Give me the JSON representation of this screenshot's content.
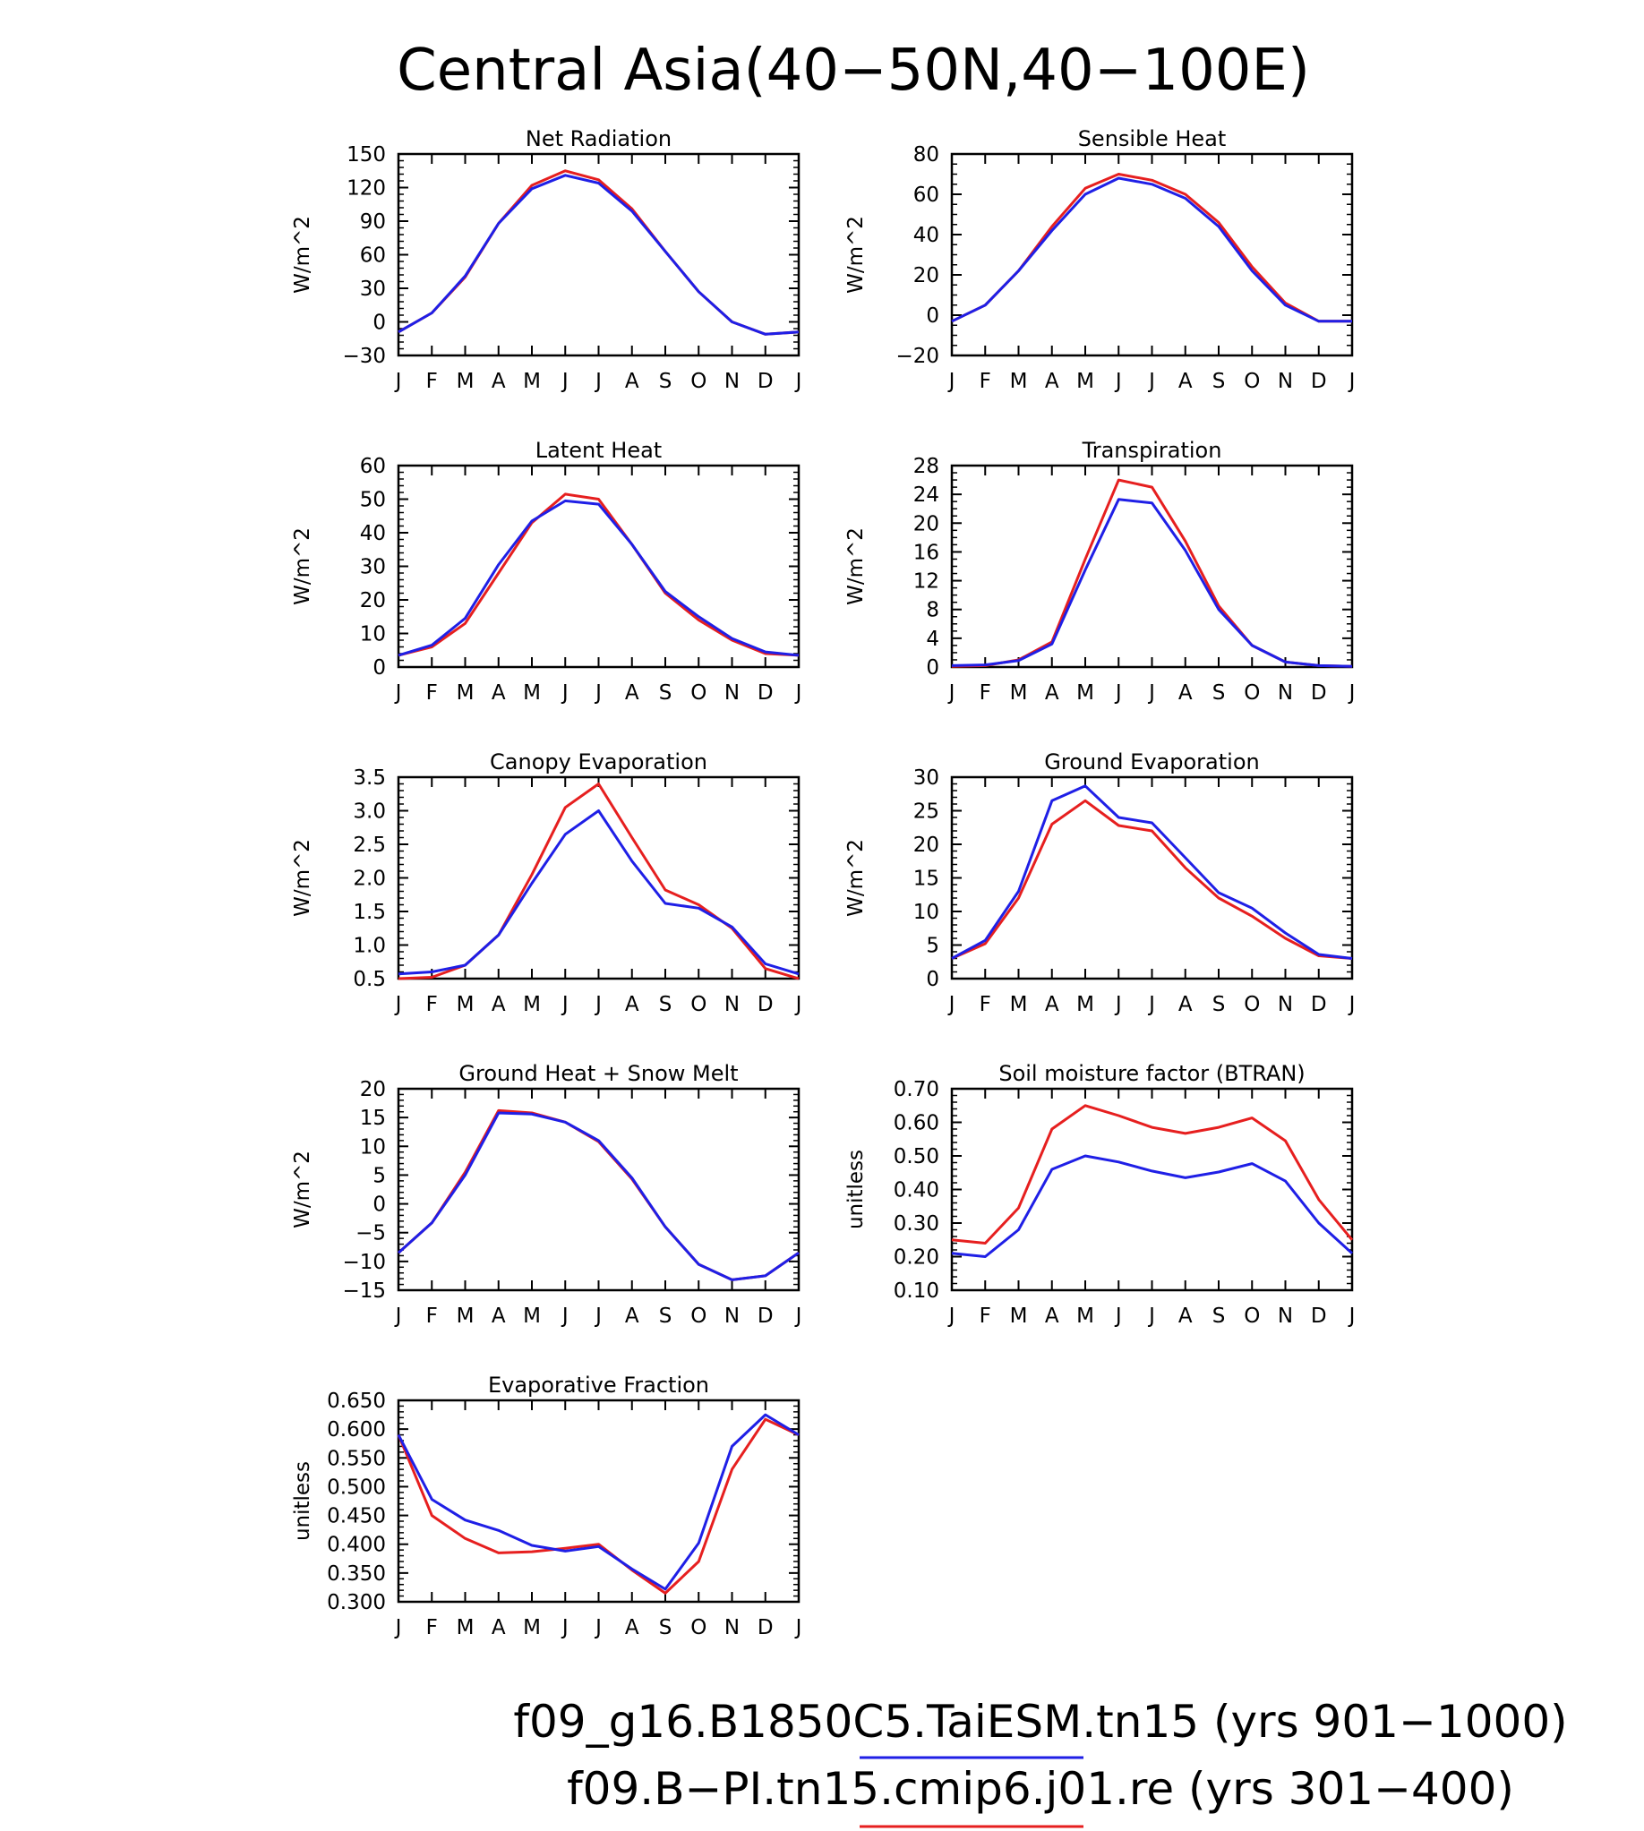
{
  "title": "Central Asia(40−50N,40−100E)",
  "colors": {
    "case1": "#1f1fe6",
    "case2": "#e61f1f",
    "axis": "#000000"
  },
  "legend": [
    {
      "label": "f09_g16.B1850C5.TaiESM.tn15 (yrs 901−1000)",
      "color": "#1f1fe6"
    },
    {
      "label": "f09.B−PI.tn15.cmip6.j01.re (yrs 301−400)",
      "color": "#e61f1f"
    }
  ],
  "months": [
    "J",
    "F",
    "M",
    "A",
    "M",
    "J",
    "J",
    "A",
    "S",
    "O",
    "N",
    "D",
    "J"
  ],
  "chart_data": [
    {
      "type": "line",
      "title": "Net Radiation",
      "ylabel": "W/m^2",
      "ylim": [
        -30,
        150
      ],
      "yticks": [
        -30,
        0,
        30,
        60,
        90,
        120,
        150
      ],
      "yticklabels": [
        "−30",
        "0",
        "30",
        "60",
        "90",
        "120",
        "150"
      ],
      "minor": 5,
      "x": [
        "J",
        "F",
        "M",
        "A",
        "M",
        "J",
        "J",
        "A",
        "S",
        "O",
        "N",
        "D",
        "J"
      ],
      "series": [
        {
          "color": "#e61f1f",
          "values": [
            -9,
            8,
            40,
            88,
            122,
            135,
            127,
            101,
            63,
            27,
            0,
            -11,
            -9
          ]
        },
        {
          "color": "#1f1fe6",
          "values": [
            -9,
            8,
            41,
            88,
            119,
            131,
            124,
            99,
            63,
            27,
            0,
            -11,
            -9
          ]
        }
      ]
    },
    {
      "type": "line",
      "title": "Sensible Heat",
      "ylabel": "W/m^2",
      "ylim": [
        -20,
        80
      ],
      "yticks": [
        -20,
        0,
        20,
        40,
        60,
        80
      ],
      "yticklabels": [
        "−20",
        "0",
        "20",
        "40",
        "60",
        "80"
      ],
      "minor": 4,
      "x": [
        "J",
        "F",
        "M",
        "A",
        "M",
        "J",
        "J",
        "A",
        "S",
        "O",
        "N",
        "D",
        "J"
      ],
      "series": [
        {
          "color": "#e61f1f",
          "values": [
            -3,
            5,
            22,
            44,
            63,
            70,
            67,
            60,
            46,
            24,
            6,
            -3,
            -3
          ]
        },
        {
          "color": "#1f1fe6",
          "values": [
            -3,
            5,
            22,
            42,
            60,
            68,
            65,
            58,
            44,
            22,
            5,
            -3,
            -3
          ]
        }
      ]
    },
    {
      "type": "line",
      "title": "Latent Heat",
      "ylabel": "W/m^2",
      "ylim": [
        0,
        60
      ],
      "yticks": [
        0,
        10,
        20,
        30,
        40,
        50,
        60
      ],
      "yticklabels": [
        "0",
        "10",
        "20",
        "30",
        "40",
        "50",
        "60"
      ],
      "minor": 5,
      "x": [
        "J",
        "F",
        "M",
        "A",
        "M",
        "J",
        "J",
        "A",
        "S",
        "O",
        "N",
        "D",
        "J"
      ],
      "series": [
        {
          "color": "#e61f1f",
          "values": [
            3.5,
            6,
            13,
            28,
            43,
            51.5,
            50,
            36.5,
            22,
            14,
            8,
            4,
            3.5
          ]
        },
        {
          "color": "#1f1fe6",
          "values": [
            3.5,
            6.5,
            14.5,
            30.5,
            43.5,
            49.5,
            48.5,
            36.5,
            22.5,
            15,
            8.5,
            4.5,
            3.5
          ]
        }
      ]
    },
    {
      "type": "line",
      "title": "Transpiration",
      "ylabel": "W/m^2",
      "ylim": [
        0,
        28
      ],
      "yticks": [
        0,
        4,
        8,
        12,
        16,
        20,
        24,
        28
      ],
      "yticklabels": [
        "0",
        "4",
        "8",
        "12",
        "16",
        "20",
        "24",
        "28"
      ],
      "minor": 4,
      "x": [
        "J",
        "F",
        "M",
        "A",
        "M",
        "J",
        "J",
        "A",
        "S",
        "O",
        "N",
        "D",
        "J"
      ],
      "series": [
        {
          "color": "#e61f1f",
          "values": [
            0.1,
            0.2,
            1,
            3.5,
            15,
            26,
            25,
            17.5,
            8.5,
            3,
            0.7,
            0.2,
            0.1
          ]
        },
        {
          "color": "#1f1fe6",
          "values": [
            0.2,
            0.3,
            0.9,
            3.2,
            13.5,
            23.3,
            22.8,
            16.2,
            8,
            3,
            0.7,
            0.2,
            0.1
          ]
        }
      ]
    },
    {
      "type": "line",
      "title": "Canopy Evaporation",
      "ylabel": "W/m^2",
      "ylim": [
        0.5,
        3.5
      ],
      "yticks": [
        0.5,
        1.0,
        1.5,
        2.0,
        2.5,
        3.0,
        3.5
      ],
      "yticklabels": [
        "0.5",
        "1.0",
        "1.5",
        "2.0",
        "2.5",
        "3.0",
        "3.5"
      ],
      "minor": 5,
      "x": [
        "J",
        "F",
        "M",
        "A",
        "M",
        "J",
        "J",
        "A",
        "S",
        "O",
        "N",
        "D",
        "J"
      ],
      "series": [
        {
          "color": "#e61f1f",
          "values": [
            0.5,
            0.52,
            0.7,
            1.15,
            2.05,
            3.05,
            3.4,
            2.6,
            1.82,
            1.6,
            1.25,
            0.65,
            0.5
          ]
        },
        {
          "color": "#1f1fe6",
          "values": [
            0.57,
            0.6,
            0.7,
            1.15,
            1.92,
            2.65,
            3.0,
            2.25,
            1.62,
            1.55,
            1.27,
            0.72,
            0.57
          ]
        }
      ]
    },
    {
      "type": "line",
      "title": "Ground Evaporation",
      "ylabel": "W/m^2",
      "ylim": [
        0,
        30
      ],
      "yticks": [
        0,
        5,
        10,
        15,
        20,
        25,
        30
      ],
      "yticklabels": [
        "0",
        "5",
        "10",
        "15",
        "20",
        "25",
        "30"
      ],
      "minor": 5,
      "x": [
        "J",
        "F",
        "M",
        "A",
        "M",
        "J",
        "J",
        "A",
        "S",
        "O",
        "N",
        "D",
        "J"
      ],
      "series": [
        {
          "color": "#e61f1f",
          "values": [
            3,
            5.2,
            12,
            23,
            26.5,
            22.8,
            22,
            16.5,
            12,
            9.3,
            6,
            3.4,
            3
          ]
        },
        {
          "color": "#1f1fe6",
          "values": [
            3,
            5.7,
            13,
            26.5,
            28.7,
            24,
            23.2,
            18,
            12.8,
            10.5,
            6.8,
            3.6,
            3
          ]
        }
      ]
    },
    {
      "type": "line",
      "title": "Ground Heat + Snow Melt",
      "ylabel": "W/m^2",
      "ylim": [
        -15,
        20
      ],
      "yticks": [
        -15,
        -10,
        -5,
        0,
        5,
        10,
        15,
        20
      ],
      "yticklabels": [
        "−15",
        "−10",
        "−5",
        "0",
        "5",
        "10",
        "15",
        "20"
      ],
      "minor": 5,
      "x": [
        "J",
        "F",
        "M",
        "A",
        "M",
        "J",
        "J",
        "A",
        "S",
        "O",
        "N",
        "D",
        "J"
      ],
      "series": [
        {
          "color": "#e61f1f",
          "values": [
            -8.5,
            -3.3,
            5.5,
            16.2,
            15.8,
            14.2,
            10.8,
            4.3,
            -4,
            -10.5,
            -13.2,
            -12.5,
            -8.5
          ]
        },
        {
          "color": "#1f1fe6",
          "values": [
            -8.5,
            -3.3,
            5,
            15.8,
            15.6,
            14.2,
            11,
            4.5,
            -4,
            -10.5,
            -13.2,
            -12.5,
            -8.5
          ]
        }
      ]
    },
    {
      "type": "line",
      "title": "Soil moisture factor (BTRAN)",
      "ylabel": "unitless",
      "ylim": [
        0.1,
        0.7
      ],
      "yticks": [
        0.1,
        0.2,
        0.3,
        0.4,
        0.5,
        0.6,
        0.7
      ],
      "yticklabels": [
        "0.10",
        "0.20",
        "0.30",
        "0.40",
        "0.50",
        "0.60",
        "0.70"
      ],
      "minor": 5,
      "x": [
        "J",
        "F",
        "M",
        "A",
        "M",
        "J",
        "J",
        "A",
        "S",
        "O",
        "N",
        "D",
        "J"
      ],
      "series": [
        {
          "color": "#e61f1f",
          "values": [
            0.25,
            0.24,
            0.345,
            0.58,
            0.65,
            0.62,
            0.585,
            0.567,
            0.585,
            0.613,
            0.545,
            0.37,
            0.25
          ]
        },
        {
          "color": "#1f1fe6",
          "values": [
            0.21,
            0.2,
            0.28,
            0.46,
            0.5,
            0.482,
            0.455,
            0.435,
            0.452,
            0.477,
            0.425,
            0.3,
            0.21
          ]
        }
      ]
    },
    {
      "type": "line",
      "title": "Evaporative Fraction",
      "ylabel": "unitless",
      "ylim": [
        0.3,
        0.65
      ],
      "yticks": [
        0.3,
        0.35,
        0.4,
        0.45,
        0.5,
        0.55,
        0.6,
        0.65
      ],
      "yticklabels": [
        "0.300",
        "0.350",
        "0.400",
        "0.450",
        "0.500",
        "0.550",
        "0.600",
        "0.650"
      ],
      "minor": 5,
      "x": [
        "J",
        "F",
        "M",
        "A",
        "M",
        "J",
        "J",
        "A",
        "S",
        "O",
        "N",
        "D",
        "J"
      ],
      "series": [
        {
          "color": "#e61f1f",
          "values": [
            0.59,
            0.45,
            0.41,
            0.385,
            0.387,
            0.393,
            0.4,
            0.355,
            0.315,
            0.37,
            0.53,
            0.617,
            0.59
          ]
        },
        {
          "color": "#1f1fe6",
          "values": [
            0.59,
            0.478,
            0.442,
            0.424,
            0.398,
            0.388,
            0.396,
            0.357,
            0.322,
            0.402,
            0.57,
            0.625,
            0.59
          ]
        }
      ]
    }
  ]
}
